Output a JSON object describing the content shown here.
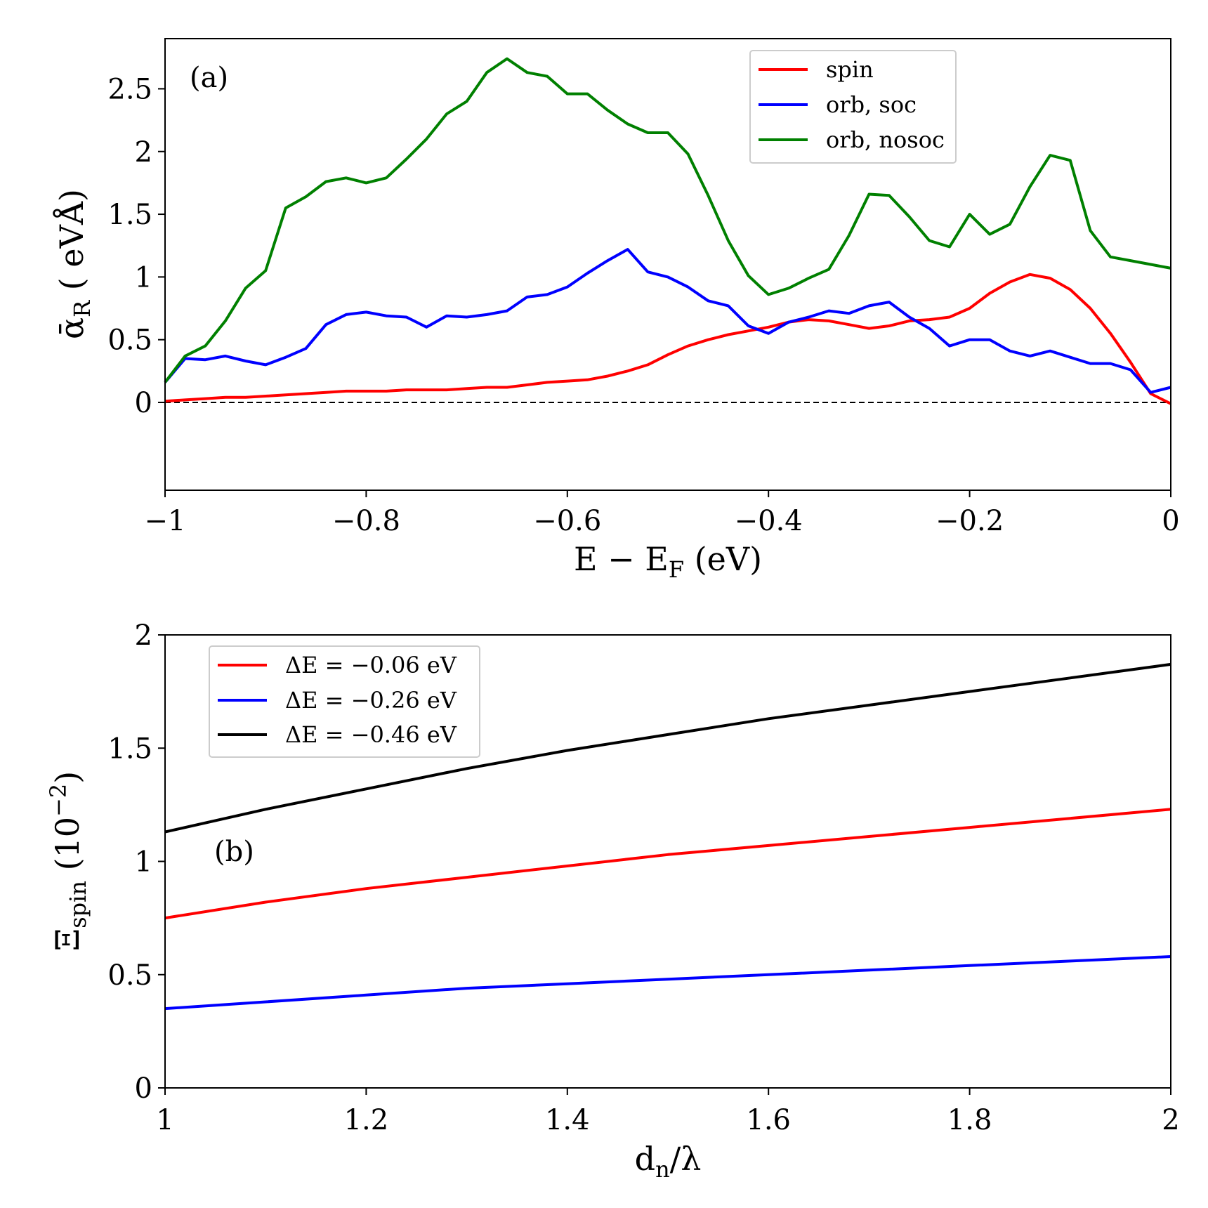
{
  "chart_data": [
    {
      "type": "line",
      "panel_label": "(a)",
      "xlabel": "E − E_F (eV)",
      "xlabel_main": "E − E",
      "xlabel_sub": "F",
      "xlabel_tail": " (eV)",
      "ylabel": "ᾱ_R ( eVÅ)",
      "ylabel_main": "ᾱ",
      "ylabel_sub": "R",
      "ylabel_tail": " ( eVÅ)",
      "xlim": [
        -1,
        0
      ],
      "ylim": [
        -0.7,
        2.9
      ],
      "xticks": [
        -1,
        -0.8,
        -0.6,
        -0.4,
        -0.2,
        0
      ],
      "xtick_labels": [
        "−1",
        "−0.8",
        "−0.6",
        "−0.4",
        "−0.2",
        "0"
      ],
      "yticks": [
        0,
        0.5,
        1,
        1.5,
        2,
        2.5
      ],
      "ytick_labels": [
        "0",
        "0.5",
        "1",
        "1.5",
        "2",
        "2.5"
      ],
      "reference_line": {
        "y": 0,
        "style": "dashed",
        "color": "#000000"
      },
      "legend_position": "top-right",
      "x": [
        -1.0,
        -0.98,
        -0.96,
        -0.94,
        -0.92,
        -0.9,
        -0.88,
        -0.86,
        -0.84,
        -0.82,
        -0.8,
        -0.78,
        -0.76,
        -0.74,
        -0.72,
        -0.7,
        -0.68,
        -0.66,
        -0.64,
        -0.62,
        -0.6,
        -0.58,
        -0.56,
        -0.54,
        -0.52,
        -0.5,
        -0.48,
        -0.46,
        -0.44,
        -0.42,
        -0.4,
        -0.38,
        -0.36,
        -0.34,
        -0.32,
        -0.3,
        -0.28,
        -0.26,
        -0.24,
        -0.22,
        -0.2,
        -0.18,
        -0.16,
        -0.14,
        -0.12,
        -0.1,
        -0.08,
        -0.06,
        -0.04,
        -0.02,
        0.0
      ],
      "series": [
        {
          "name": "spin",
          "color": "#ff0000",
          "values": [
            0.01,
            0.02,
            0.03,
            0.04,
            0.04,
            0.05,
            0.06,
            0.07,
            0.08,
            0.09,
            0.09,
            0.09,
            0.1,
            0.1,
            0.1,
            0.11,
            0.12,
            0.12,
            0.14,
            0.16,
            0.17,
            0.18,
            0.21,
            0.25,
            0.3,
            0.38,
            0.45,
            0.5,
            0.54,
            0.57,
            0.6,
            0.64,
            0.66,
            0.65,
            0.62,
            0.59,
            0.61,
            0.65,
            0.66,
            0.68,
            0.75,
            0.87,
            0.96,
            1.02,
            0.99,
            0.9,
            0.75,
            0.55,
            0.32,
            0.07,
            -0.01
          ]
        },
        {
          "name": "orb, soc",
          "color": "#0000ff",
          "values": [
            0.16,
            0.35,
            0.34,
            0.37,
            0.33,
            0.3,
            0.36,
            0.43,
            0.62,
            0.7,
            0.72,
            0.69,
            0.68,
            0.6,
            0.69,
            0.68,
            0.7,
            0.73,
            0.84,
            0.86,
            0.92,
            1.03,
            1.13,
            1.22,
            1.04,
            1.0,
            0.92,
            0.81,
            0.77,
            0.61,
            0.55,
            0.64,
            0.68,
            0.73,
            0.71,
            0.77,
            0.8,
            0.68,
            0.59,
            0.45,
            0.5,
            0.5,
            0.41,
            0.37,
            0.41,
            0.36,
            0.31,
            0.31,
            0.26,
            0.08,
            0.12
          ]
        },
        {
          "name": "orb, nosoc",
          "color": "#008000",
          "values": [
            0.16,
            0.37,
            0.45,
            0.65,
            0.91,
            1.05,
            1.55,
            1.64,
            1.76,
            1.79,
            1.75,
            1.79,
            1.94,
            2.1,
            2.3,
            2.4,
            2.63,
            2.74,
            2.63,
            2.6,
            2.46,
            2.46,
            2.33,
            2.22,
            2.15,
            2.15,
            1.98,
            1.65,
            1.29,
            1.01,
            0.86,
            0.91,
            0.99,
            1.06,
            1.33,
            1.66,
            1.65,
            1.48,
            1.29,
            1.24,
            1.5,
            1.34,
            1.42,
            1.72,
            1.97,
            1.93,
            1.37,
            1.16,
            1.13,
            1.1,
            1.07
          ]
        }
      ],
      "legend_labels": [
        "spin",
        "orb, soc",
        "orb, nosoc"
      ]
    },
    {
      "type": "line",
      "panel_label": "(b)",
      "xlabel": "d_n/λ",
      "xlabel_main": "d",
      "xlabel_sub": "n",
      "xlabel_tail": "/λ",
      "ylabel": "Ξ_spin (10^−2)",
      "ylabel_main": "Ξ",
      "ylabel_sub": "spin",
      "ylabel_tail": " (10",
      "ylabel_sup": "−2",
      "ylabel_close": ")",
      "xlim": [
        1,
        2
      ],
      "ylim": [
        0,
        2
      ],
      "xticks": [
        1,
        1.2,
        1.4,
        1.6,
        1.8,
        2
      ],
      "xtick_labels": [
        "1",
        "1.2",
        "1.4",
        "1.6",
        "1.8",
        "2"
      ],
      "yticks": [
        0,
        0.5,
        1,
        1.5,
        2
      ],
      "ytick_labels": [
        "0",
        "0.5",
        "1",
        "1.5",
        "2"
      ],
      "legend_position": "top-left",
      "x": [
        1.0,
        1.1,
        1.2,
        1.3,
        1.4,
        1.5,
        1.6,
        1.7,
        1.8,
        1.9,
        2.0
      ],
      "series": [
        {
          "name": "ΔE = −0.06 eV",
          "color": "#ff0000",
          "values": [
            0.75,
            0.82,
            0.88,
            0.93,
            0.98,
            1.03,
            1.07,
            1.11,
            1.15,
            1.19,
            1.23
          ]
        },
        {
          "name": "ΔE = −0.26 eV",
          "color": "#0000ff",
          "values": [
            0.35,
            0.38,
            0.41,
            0.44,
            0.46,
            0.48,
            0.5,
            0.52,
            0.54,
            0.56,
            0.58
          ]
        },
        {
          "name": "ΔE = −0.46 eV",
          "color": "#000000",
          "values": [
            1.13,
            1.23,
            1.32,
            1.41,
            1.49,
            1.56,
            1.63,
            1.69,
            1.75,
            1.81,
            1.87
          ]
        }
      ],
      "legend_labels": [
        "ΔE = −0.06 eV",
        "ΔE = −0.26 eV",
        "ΔE = −0.46 eV"
      ]
    }
  ]
}
